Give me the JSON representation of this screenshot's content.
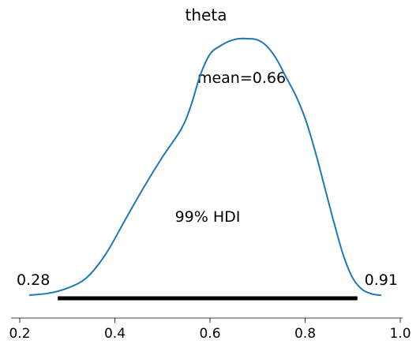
{
  "chart_data": {
    "type": "area",
    "title": "theta",
    "xlabel": "",
    "ylabel": "",
    "xlim": [
      0.2,
      1.0
    ],
    "x_ticks": [
      0.2,
      0.4,
      0.6,
      0.8,
      1.0
    ],
    "x_tick_labels": [
      "0.2",
      "0.4",
      "0.6",
      "0.8",
      "1.0"
    ],
    "show_y_axis": false,
    "grid": false,
    "line_color": "#1f77b4",
    "hdi_color": "#000000",
    "series": [
      {
        "x": [
          0.22,
          0.26,
          0.3,
          0.34,
          0.38,
          0.42,
          0.46,
          0.5,
          0.54,
          0.56,
          0.58,
          0.6,
          0.62,
          0.64,
          0.66,
          0.68,
          0.7,
          0.72,
          0.74,
          0.76,
          0.78,
          0.8,
          0.82,
          0.84,
          0.86,
          0.88,
          0.9,
          0.92,
          0.94,
          0.96
        ],
        "density": [
          0.003,
          0.01,
          0.03,
          0.07,
          0.16,
          0.29,
          0.42,
          0.54,
          0.65,
          0.74,
          0.86,
          0.94,
          0.97,
          0.99,
          1.0,
          1.0,
          0.995,
          0.97,
          0.92,
          0.85,
          0.78,
          0.69,
          0.57,
          0.43,
          0.29,
          0.16,
          0.07,
          0.025,
          0.008,
          0.002
        ]
      }
    ],
    "mean_label": "mean=0.66",
    "hdi_label": "99% HDI",
    "hdi_low": 0.28,
    "hdi_high": 0.91,
    "hdi_low_label": "0.28",
    "hdi_high_label": "0.91"
  }
}
